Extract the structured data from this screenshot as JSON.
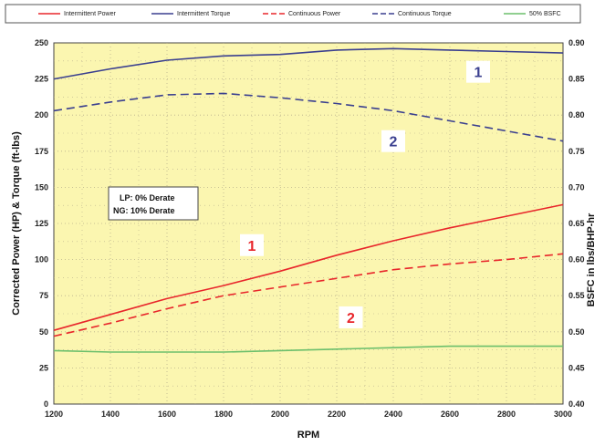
{
  "chart_data": {
    "type": "line",
    "xlabel": "RPM",
    "ylabel": "Corrected Power (HP) & Torque (ft-lbs)",
    "y2label": "BSFC in lbs/BHP-hr",
    "xlim": [
      1200,
      3000
    ],
    "ylim": [
      0,
      250
    ],
    "y2lim": [
      0.4,
      0.9
    ],
    "x_ticks": [
      "1200",
      "1400",
      "1600",
      "1800",
      "2000",
      "2200",
      "2400",
      "2600",
      "2800",
      "3000"
    ],
    "y_ticks": [
      "0",
      "25",
      "50",
      "75",
      "100",
      "125",
      "150",
      "175",
      "200",
      "225",
      "250"
    ],
    "y2_ticks": [
      "0.40",
      "0.45",
      "0.50",
      "0.55",
      "0.60",
      "0.65",
      "0.70",
      "0.75",
      "0.80",
      "0.85",
      "0.90"
    ],
    "grid": "dotted",
    "legend_position": "top",
    "series": [
      {
        "name": "Intermittent Power",
        "color": "#e8262b",
        "dash": "solid",
        "points": [
          [
            1200,
            51
          ],
          [
            1400,
            62
          ],
          [
            1600,
            73
          ],
          [
            1800,
            82
          ],
          [
            2000,
            92
          ],
          [
            2200,
            103
          ],
          [
            2400,
            113
          ],
          [
            2600,
            122
          ],
          [
            2800,
            130
          ],
          [
            3000,
            138
          ]
        ]
      },
      {
        "name": "Intermittent Torque",
        "color": "#3a3f8f",
        "dash": "solid",
        "points": [
          [
            1200,
            225
          ],
          [
            1400,
            232
          ],
          [
            1600,
            238
          ],
          [
            1800,
            241
          ],
          [
            2000,
            242
          ],
          [
            2200,
            245
          ],
          [
            2400,
            246
          ],
          [
            2600,
            245
          ],
          [
            2800,
            244
          ],
          [
            3000,
            243
          ]
        ]
      },
      {
        "name": "Continuous Power",
        "color": "#e8262b",
        "dash": "dashed",
        "points": [
          [
            1200,
            47
          ],
          [
            1400,
            56
          ],
          [
            1600,
            66
          ],
          [
            1800,
            75
          ],
          [
            2000,
            81
          ],
          [
            2200,
            87
          ],
          [
            2400,
            93
          ],
          [
            2600,
            97
          ],
          [
            2800,
            100
          ],
          [
            3000,
            104
          ]
        ]
      },
      {
        "name": "Continuous Torque",
        "color": "#3a3f8f",
        "dash": "dashed",
        "points": [
          [
            1200,
            203
          ],
          [
            1400,
            209
          ],
          [
            1600,
            214
          ],
          [
            1800,
            215
          ],
          [
            2000,
            212
          ],
          [
            2200,
            208
          ],
          [
            2400,
            203
          ],
          [
            2600,
            196
          ],
          [
            2800,
            189
          ],
          [
            3000,
            182
          ]
        ]
      },
      {
        "name": "50% BSFC",
        "color": "#6cbf6c",
        "dash": "solid",
        "points": [
          [
            1200,
            37
          ],
          [
            1400,
            36
          ],
          [
            1600,
            36
          ],
          [
            1800,
            36
          ],
          [
            2000,
            37
          ],
          [
            2200,
            38
          ],
          [
            2400,
            39
          ],
          [
            2600,
            40
          ],
          [
            2800,
            40
          ],
          [
            3000,
            40
          ]
        ]
      }
    ],
    "annotations": {
      "derate_line1": "LP:  0% Derate",
      "derate_line2": "NG: 10% Derate",
      "torque_intermittent_label": "1",
      "torque_continuous_label": "2",
      "power_intermittent_label": "1",
      "power_continuous_label": "2"
    },
    "annotation_points": {
      "torque_intermittent_label": [
        2700,
        230
      ],
      "torque_continuous_label": [
        2400,
        182
      ],
      "power_intermittent_label": [
        1900,
        110
      ],
      "power_continuous_label": [
        2250,
        60
      ]
    },
    "colors": {
      "plot_background": "#fbf6b0",
      "grid": "#b8b08c",
      "label_red": "#e8262b",
      "label_blue": "#3a3f8f"
    }
  }
}
